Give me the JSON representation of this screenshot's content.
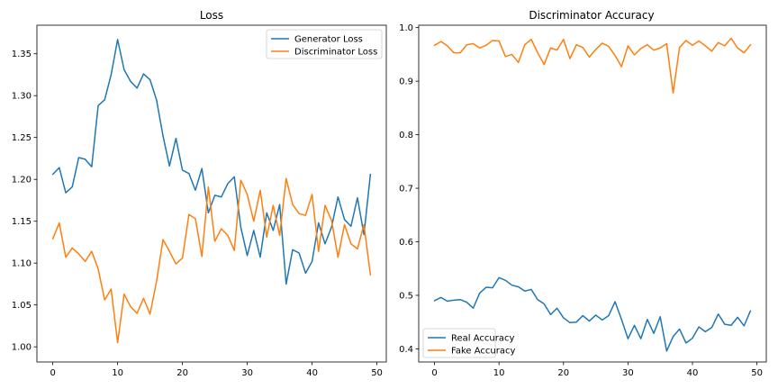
{
  "chart_data": [
    {
      "type": "line",
      "title": "Loss",
      "xlabel": "",
      "ylabel": "",
      "xlim": [
        -2.45,
        51.45
      ],
      "ylim": [
        0.9819,
        1.3841
      ],
      "xticks": [
        0,
        10,
        20,
        30,
        40,
        50
      ],
      "yticks": [
        1.0,
        1.05,
        1.1,
        1.15,
        1.2,
        1.25,
        1.3,
        1.35
      ],
      "ytick_labels": [
        "1.00",
        "1.05",
        "1.10",
        "1.15",
        "1.20",
        "1.25",
        "1.30",
        "1.35"
      ],
      "legend": "top-right",
      "grid": false,
      "x": [
        0,
        1,
        2,
        3,
        4,
        5,
        6,
        7,
        8,
        9,
        10,
        11,
        12,
        13,
        14,
        15,
        16,
        17,
        18,
        19,
        20,
        21,
        22,
        23,
        24,
        25,
        26,
        27,
        28,
        29,
        30,
        31,
        32,
        33,
        34,
        35,
        36,
        37,
        38,
        39,
        40,
        41,
        42,
        43,
        44,
        45,
        46,
        47,
        48,
        49
      ],
      "series": [
        {
          "name": "Generator Loss",
          "color": "#1f77b4",
          "values": [
            1.206,
            1.214,
            1.184,
            1.191,
            1.226,
            1.224,
            1.215,
            1.288,
            1.295,
            1.325,
            1.367,
            1.331,
            1.317,
            1.309,
            1.326,
            1.319,
            1.295,
            1.252,
            1.216,
            1.249,
            1.211,
            1.207,
            1.187,
            1.213,
            1.16,
            1.181,
            1.179,
            1.195,
            1.203,
            1.143,
            1.109,
            1.139,
            1.107,
            1.16,
            1.139,
            1.17,
            1.075,
            1.116,
            1.112,
            1.088,
            1.102,
            1.148,
            1.123,
            1.143,
            1.179,
            1.152,
            1.144,
            1.178,
            1.134,
            1.206
          ]
        },
        {
          "name": "Discriminator Loss",
          "color": "#ff7f0e",
          "values": [
            1.129,
            1.148,
            1.107,
            1.118,
            1.111,
            1.102,
            1.114,
            1.093,
            1.056,
            1.069,
            1.005,
            1.063,
            1.048,
            1.04,
            1.058,
            1.039,
            1.078,
            1.128,
            1.114,
            1.099,
            1.106,
            1.158,
            1.153,
            1.108,
            1.191,
            1.126,
            1.141,
            1.133,
            1.115,
            1.199,
            1.182,
            1.15,
            1.187,
            1.131,
            1.169,
            1.133,
            1.201,
            1.17,
            1.159,
            1.157,
            1.182,
            1.114,
            1.169,
            1.151,
            1.107,
            1.146,
            1.123,
            1.117,
            1.146,
            1.086
          ]
        }
      ]
    },
    {
      "type": "line",
      "title": "Discriminator Accuracy",
      "xlabel": "",
      "ylabel": "",
      "xlim": [
        -2.45,
        51.45
      ],
      "ylim": [
        0.3755,
        1.0045
      ],
      "xticks": [
        0,
        10,
        20,
        30,
        40,
        50
      ],
      "yticks": [
        0.4,
        0.5,
        0.6,
        0.7,
        0.8,
        0.9,
        1.0
      ],
      "ytick_labels": [
        "0.4",
        "0.5",
        "0.6",
        "0.7",
        "0.8",
        "0.9",
        "1.0"
      ],
      "legend": "bottom-left",
      "grid": false,
      "x": [
        0,
        1,
        2,
        3,
        4,
        5,
        6,
        7,
        8,
        9,
        10,
        11,
        12,
        13,
        14,
        15,
        16,
        17,
        18,
        19,
        20,
        21,
        22,
        23,
        24,
        25,
        26,
        27,
        28,
        29,
        30,
        31,
        32,
        33,
        34,
        35,
        36,
        37,
        38,
        39,
        40,
        41,
        42,
        43,
        44,
        45,
        46,
        47,
        48,
        49
      ],
      "series": [
        {
          "name": "Real Accuracy",
          "color": "#1f77b4",
          "values": [
            0.49,
            0.496,
            0.489,
            0.491,
            0.492,
            0.487,
            0.476,
            0.504,
            0.515,
            0.514,
            0.533,
            0.528,
            0.519,
            0.516,
            0.508,
            0.511,
            0.492,
            0.484,
            0.464,
            0.476,
            0.458,
            0.449,
            0.45,
            0.462,
            0.452,
            0.463,
            0.454,
            0.462,
            0.488,
            0.455,
            0.419,
            0.444,
            0.419,
            0.455,
            0.429,
            0.46,
            0.396,
            0.423,
            0.437,
            0.411,
            0.42,
            0.441,
            0.432,
            0.44,
            0.465,
            0.446,
            0.444,
            0.459,
            0.443,
            0.471
          ]
        },
        {
          "name": "Fake Accuracy",
          "color": "#ff7f0e",
          "values": [
            0.967,
            0.974,
            0.966,
            0.953,
            0.953,
            0.968,
            0.97,
            0.962,
            0.967,
            0.976,
            0.975,
            0.946,
            0.95,
            0.935,
            0.968,
            0.978,
            0.953,
            0.931,
            0.962,
            0.958,
            0.978,
            0.942,
            0.968,
            0.963,
            0.945,
            0.959,
            0.971,
            0.965,
            0.948,
            0.927,
            0.966,
            0.949,
            0.961,
            0.968,
            0.958,
            0.962,
            0.97,
            0.878,
            0.963,
            0.976,
            0.967,
            0.975,
            0.966,
            0.956,
            0.972,
            0.966,
            0.98,
            0.962,
            0.953,
            0.968
          ]
        }
      ]
    }
  ]
}
